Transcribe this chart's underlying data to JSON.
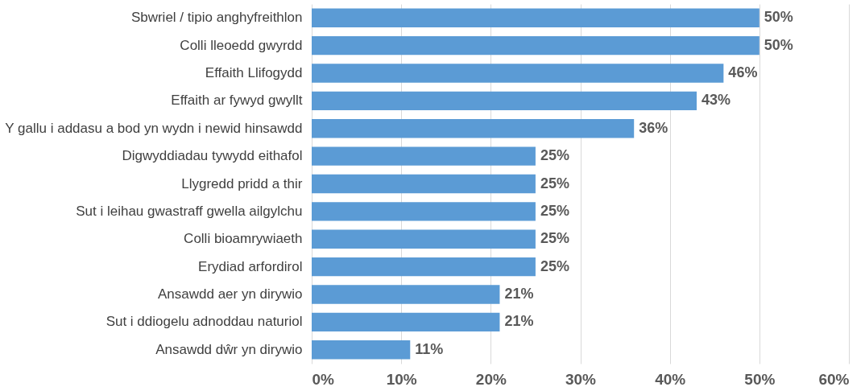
{
  "chart_data": {
    "type": "bar",
    "orientation": "horizontal",
    "categories": [
      "Sbwriel / tipio anghyfreithlon",
      "Colli lleoedd gwyrdd",
      "Effaith Llifogydd",
      "Effaith ar fywyd gwyllt",
      "Y gallu i addasu a bod yn wydn i newid hinsawdd",
      "Digwyddiadau tywydd eithafol",
      "Llygredd pridd a thir",
      "Sut i leihau gwastraff gwella ailgylchu",
      "Colli bioamrywiaeth",
      "Erydiad arfordirol",
      "Ansawdd aer yn dirywio",
      "Sut i ddiogelu adnoddau naturiol",
      "Ansawdd dŵr yn dirywio"
    ],
    "values": [
      50,
      50,
      46,
      43,
      36,
      25,
      25,
      25,
      25,
      25,
      21,
      21,
      11
    ],
    "value_labels": [
      "50%",
      "50%",
      "46%",
      "43%",
      "36%",
      "25%",
      "25%",
      "25%",
      "25%",
      "25%",
      "21%",
      "21%",
      "11%"
    ],
    "color": "#5b9bd5",
    "xlim": [
      0,
      60
    ],
    "xticks": [
      {
        "value": 0,
        "label": "0%"
      },
      {
        "value": 10,
        "label": "10%"
      },
      {
        "value": 20,
        "label": "20%"
      },
      {
        "value": 30,
        "label": "30%"
      },
      {
        "value": 40,
        "label": "40%"
      },
      {
        "value": 50,
        "label": "50%"
      },
      {
        "value": 60,
        "label": "60%"
      }
    ],
    "grid": "x"
  }
}
